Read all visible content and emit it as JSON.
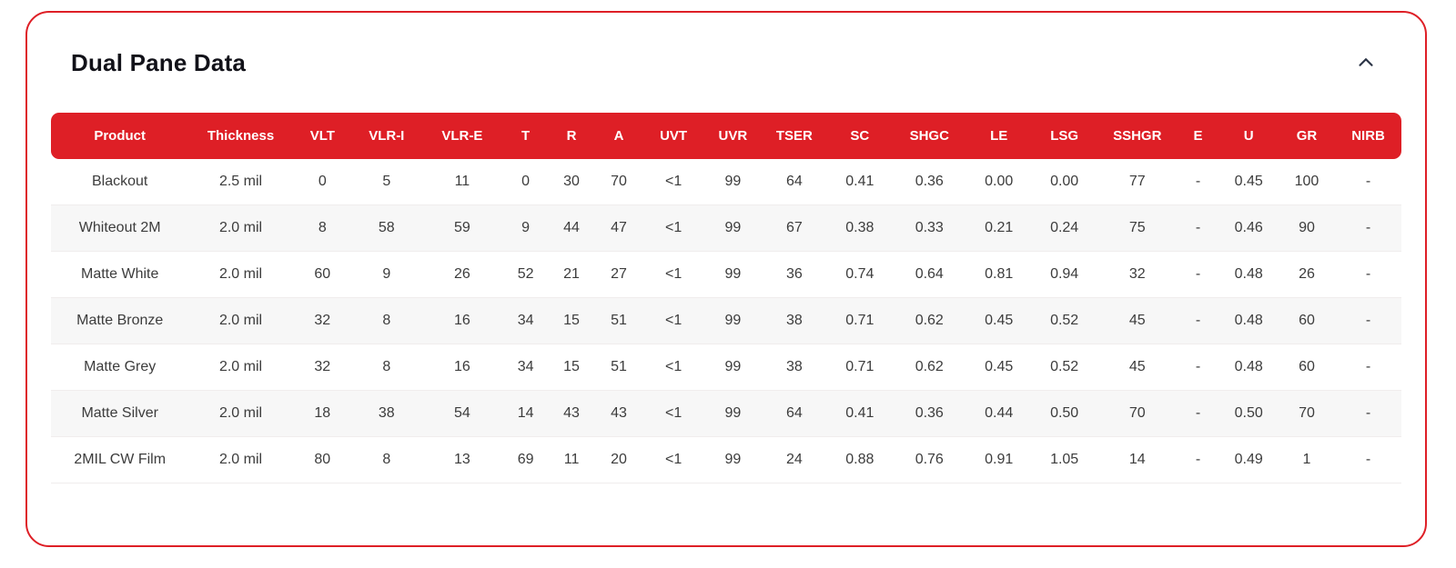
{
  "card": {
    "title": "Dual Pane Data",
    "collapse_icon": "chevron-up-icon"
  },
  "colors": {
    "accent_red": "#DE1F26",
    "header_text": "#FFFFFF",
    "title_text": "#121219",
    "body_text": "#3C3C3C",
    "row_stripe": "#F7F7F7",
    "chevron": "#2B3446"
  },
  "table": {
    "columns": [
      "Product",
      "Thickness",
      "VLT",
      "VLR-I",
      "VLR-E",
      "T",
      "R",
      "A",
      "UVT",
      "UVR",
      "TSER",
      "SC",
      "SHGC",
      "LE",
      "LSG",
      "SSHGR",
      "E",
      "U",
      "GR",
      "NIRB"
    ],
    "rows": [
      [
        "Blackout",
        "2.5 mil",
        "0",
        "5",
        "11",
        "0",
        "30",
        "70",
        "<1",
        "99",
        "64",
        "0.41",
        "0.36",
        "0.00",
        "0.00",
        "77",
        "-",
        "0.45",
        "100",
        "-"
      ],
      [
        "Whiteout 2M",
        "2.0 mil",
        "8",
        "58",
        "59",
        "9",
        "44",
        "47",
        "<1",
        "99",
        "67",
        "0.38",
        "0.33",
        "0.21",
        "0.24",
        "75",
        "-",
        "0.46",
        "90",
        "-"
      ],
      [
        "Matte White",
        "2.0 mil",
        "60",
        "9",
        "26",
        "52",
        "21",
        "27",
        "<1",
        "99",
        "36",
        "0.74",
        "0.64",
        "0.81",
        "0.94",
        "32",
        "-",
        "0.48",
        "26",
        "-"
      ],
      [
        "Matte Bronze",
        "2.0 mil",
        "32",
        "8",
        "16",
        "34",
        "15",
        "51",
        "<1",
        "99",
        "38",
        "0.71",
        "0.62",
        "0.45",
        "0.52",
        "45",
        "-",
        "0.48",
        "60",
        "-"
      ],
      [
        "Matte Grey",
        "2.0 mil",
        "32",
        "8",
        "16",
        "34",
        "15",
        "51",
        "<1",
        "99",
        "38",
        "0.71",
        "0.62",
        "0.45",
        "0.52",
        "45",
        "-",
        "0.48",
        "60",
        "-"
      ],
      [
        "Matte Silver",
        "2.0 mil",
        "18",
        "38",
        "54",
        "14",
        "43",
        "43",
        "<1",
        "99",
        "64",
        "0.41",
        "0.36",
        "0.44",
        "0.50",
        "70",
        "-",
        "0.50",
        "70",
        "-"
      ],
      [
        "2MIL CW Film",
        "2.0 mil",
        "80",
        "8",
        "13",
        "69",
        "11",
        "20",
        "<1",
        "99",
        "24",
        "0.88",
        "0.76",
        "0.91",
        "1.05",
        "14",
        "-",
        "0.49",
        "1",
        "-"
      ]
    ]
  }
}
